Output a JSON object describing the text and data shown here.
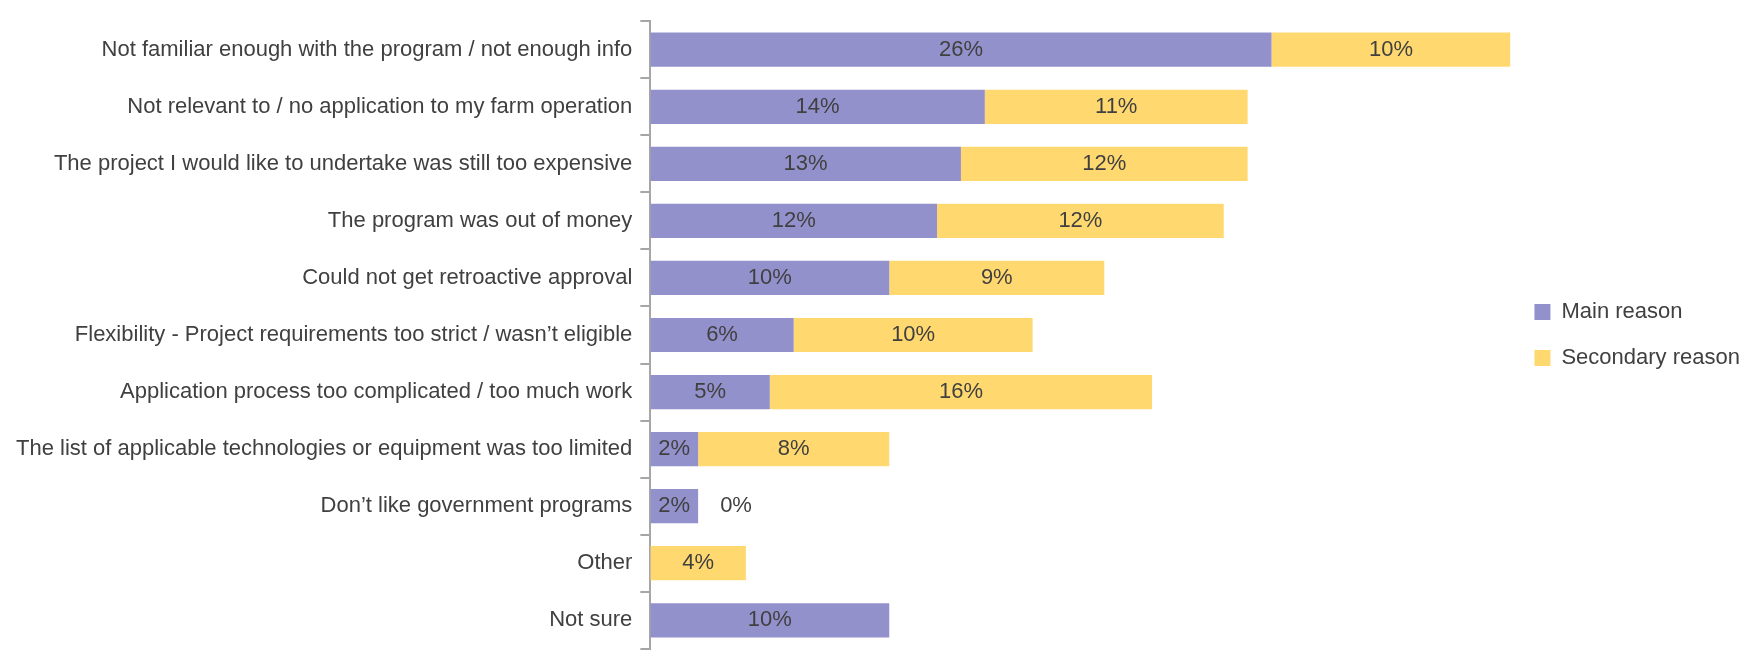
{
  "chart_data": {
    "type": "bar",
    "orientation": "horizontal",
    "stacked": true,
    "legend": "right",
    "categories": [
      "Not familiar enough with the program / not enough info",
      "Not relevant to / no application to my farm operation",
      "The project I would like to undertake was still too expensive",
      "The program was out of money",
      "Could not get retroactive approval",
      "Flexibility - Project requirements too strict / wasn’t eligible",
      "Application process too complicated / too much work",
      "The list of applicable technologies or equipment was too limited",
      "Don’t like government programs",
      "Other",
      "Not sure"
    ],
    "series": [
      {
        "name": "Main reason",
        "color": "#9391cc",
        "values": [
          26,
          14,
          13,
          12,
          10,
          6,
          5,
          2,
          2,
          null,
          10
        ],
        "value_labels": [
          "26%",
          "14%",
          "13%",
          "12%",
          "10%",
          "6%",
          "5%",
          "2%",
          "2%",
          null,
          "10%"
        ]
      },
      {
        "name": "Secondary reason",
        "color": "#ffd970",
        "values": [
          10,
          11,
          12,
          12,
          9,
          10,
          16,
          8,
          0,
          4,
          null
        ],
        "value_labels": [
          "10%",
          "11%",
          "12%",
          "12%",
          "9%",
          "10%",
          "16%",
          "8%",
          "0%",
          "4%",
          null
        ]
      }
    ]
  }
}
